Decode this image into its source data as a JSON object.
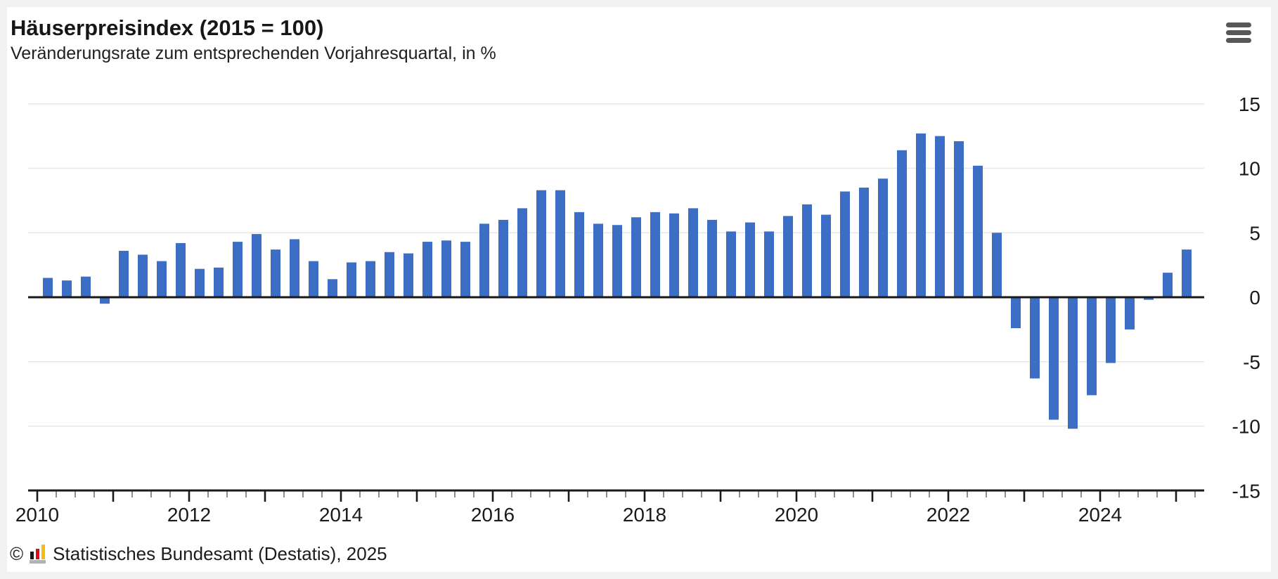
{
  "header": {
    "menu_icon": "hamburger-menu-icon"
  },
  "chart_data": {
    "type": "bar",
    "title": "Häuserpreisindex (2015 = 100)",
    "subtitle": "Veränderungsrate zum entsprechenden Vorjahresquartal, in %",
    "xlabel": "",
    "ylabel": "",
    "unit": "%",
    "ylim": [
      -15,
      15
    ],
    "grid": "horizontal",
    "legend_position": "none",
    "bar_color": "#3B6EC4",
    "grid_color": "#e7e7e7",
    "zero_line_color": "#1a1a1a",
    "axis_color": "#1a1a1a",
    "minor_tick_color": "#8f8f8f",
    "tick_label_color": "#1a1a1a",
    "ytick_values": [
      15,
      10,
      5,
      0,
      -5,
      -10,
      -15
    ],
    "ytick_labels": [
      "15",
      "10",
      "5",
      "0",
      "-5",
      "-10",
      "-15"
    ],
    "xtick_year_labels": [
      "2010",
      "2012",
      "2014",
      "2016",
      "2018",
      "2020",
      "2022",
      "2024"
    ],
    "x": [
      "2010 Q1",
      "2010 Q2",
      "2010 Q3",
      "2010 Q4",
      "2011 Q1",
      "2011 Q2",
      "2011 Q3",
      "2011 Q4",
      "2012 Q1",
      "2012 Q2",
      "2012 Q3",
      "2012 Q4",
      "2013 Q1",
      "2013 Q2",
      "2013 Q3",
      "2013 Q4",
      "2014 Q1",
      "2014 Q2",
      "2014 Q3",
      "2014 Q4",
      "2015 Q1",
      "2015 Q2",
      "2015 Q3",
      "2015 Q4",
      "2016 Q1",
      "2016 Q2",
      "2016 Q3",
      "2016 Q4",
      "2017 Q1",
      "2017 Q2",
      "2017 Q3",
      "2017 Q4",
      "2018 Q1",
      "2018 Q2",
      "2018 Q3",
      "2018 Q4",
      "2019 Q1",
      "2019 Q2",
      "2019 Q3",
      "2019 Q4",
      "2020 Q1",
      "2020 Q2",
      "2020 Q3",
      "2020 Q4",
      "2021 Q1",
      "2021 Q2",
      "2021 Q3",
      "2021 Q4",
      "2022 Q1",
      "2022 Q2",
      "2022 Q3",
      "2022 Q4",
      "2023 Q1",
      "2023 Q2",
      "2023 Q3",
      "2023 Q4",
      "2024 Q1",
      "2024 Q2",
      "2024 Q3",
      "2024 Q4",
      "2025 Q1"
    ],
    "values": [
      1.5,
      1.3,
      1.6,
      -0.5,
      3.6,
      3.3,
      2.8,
      4.2,
      2.2,
      2.3,
      4.3,
      4.9,
      3.7,
      4.5,
      2.8,
      1.4,
      2.7,
      2.8,
      3.5,
      3.4,
      4.3,
      4.4,
      4.3,
      5.7,
      6.0,
      6.9,
      8.3,
      8.3,
      6.6,
      5.7,
      5.6,
      6.2,
      6.6,
      6.5,
      6.9,
      6.0,
      5.1,
      5.8,
      5.1,
      6.3,
      7.2,
      6.4,
      8.2,
      8.5,
      9.2,
      11.4,
      12.7,
      12.5,
      12.1,
      10.2,
      5.0,
      -2.4,
      -6.3,
      -9.5,
      -10.2,
      -7.6,
      -5.1,
      -2.5,
      -0.2,
      1.9,
      3.7
    ]
  },
  "footer": {
    "copyright_symbol": "©",
    "logo": "destatis-logo",
    "text": "Statistisches Bundesamt (Destatis), 2025"
  }
}
